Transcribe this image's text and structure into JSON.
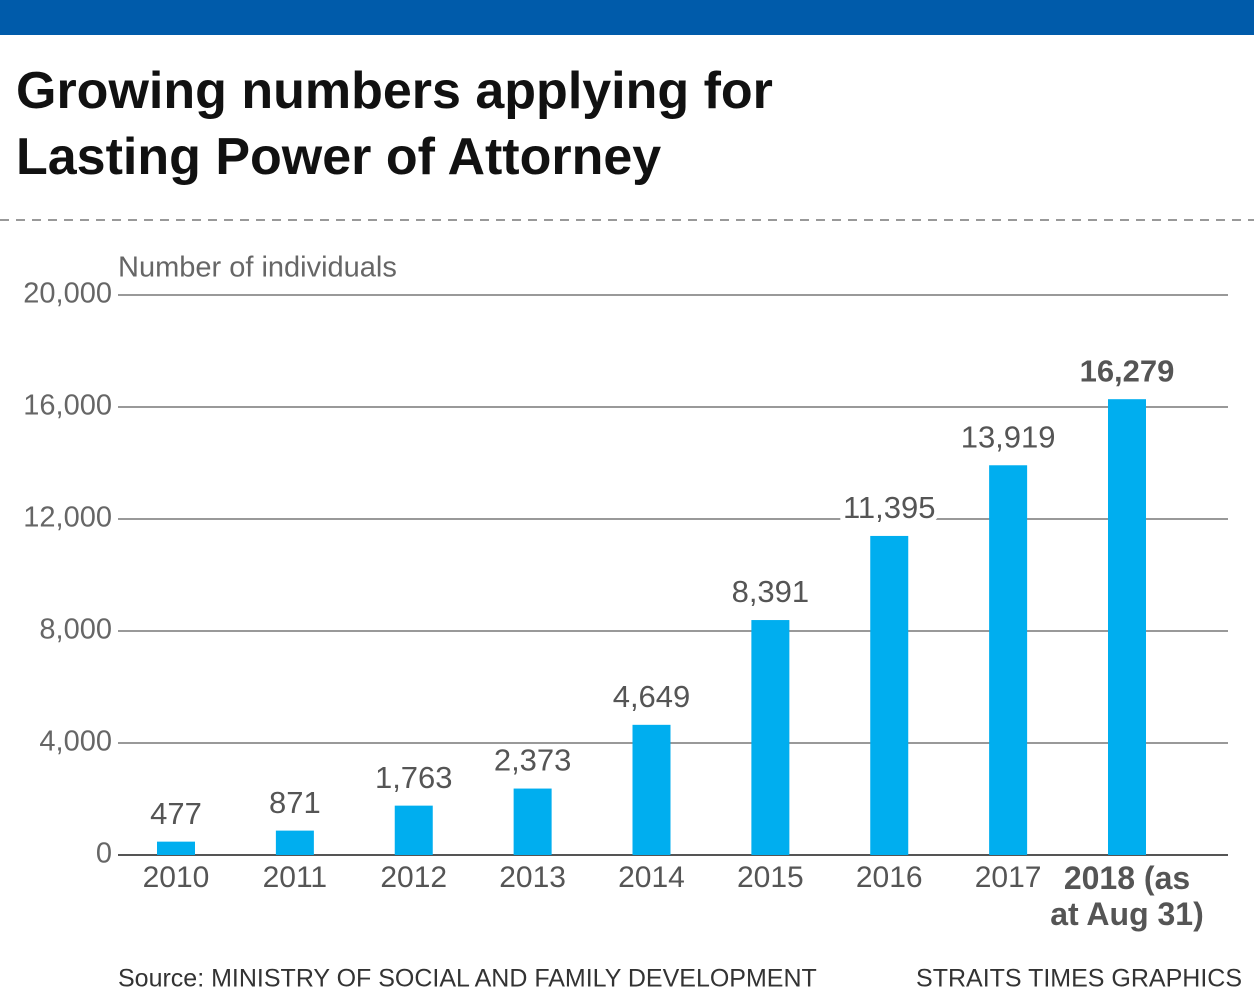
{
  "chart_data": {
    "type": "bar",
    "title": "Growing numbers applying for Lasting Power of Attorney",
    "y_axis_label": "Number of individuals",
    "categories": [
      "2010",
      "2011",
      "2012",
      "2013",
      "2014",
      "2015",
      "2016",
      "2017",
      "2018 (as at Aug 31)"
    ],
    "values": [
      477,
      871,
      1763,
      2373,
      4649,
      8391,
      11395,
      13919,
      16279
    ],
    "value_labels": [
      "477",
      "871",
      "1,763",
      "2,373",
      "4,649",
      "8,391",
      "11,395",
      "13,919",
      "16,279"
    ],
    "color": "#00aeef",
    "ylim": [
      0,
      20000
    ],
    "yticks": [
      0,
      {
        "value": 4000,
        "label": "4,000"
      },
      {
        "value": 8000,
        "label": "8,000"
      },
      {
        "value": 12000,
        "label": "12,000"
      },
      {
        "value": 16000,
        "label": "16,000"
      },
      {
        "value": 20000,
        "label": "20,000"
      }
    ],
    "grid": true,
    "source": "Source: MINISTRY OF SOCIAL AND FAMILY DEVELOPMENT",
    "credit": "STRAITS TIMES GRAPHICS"
  }
}
